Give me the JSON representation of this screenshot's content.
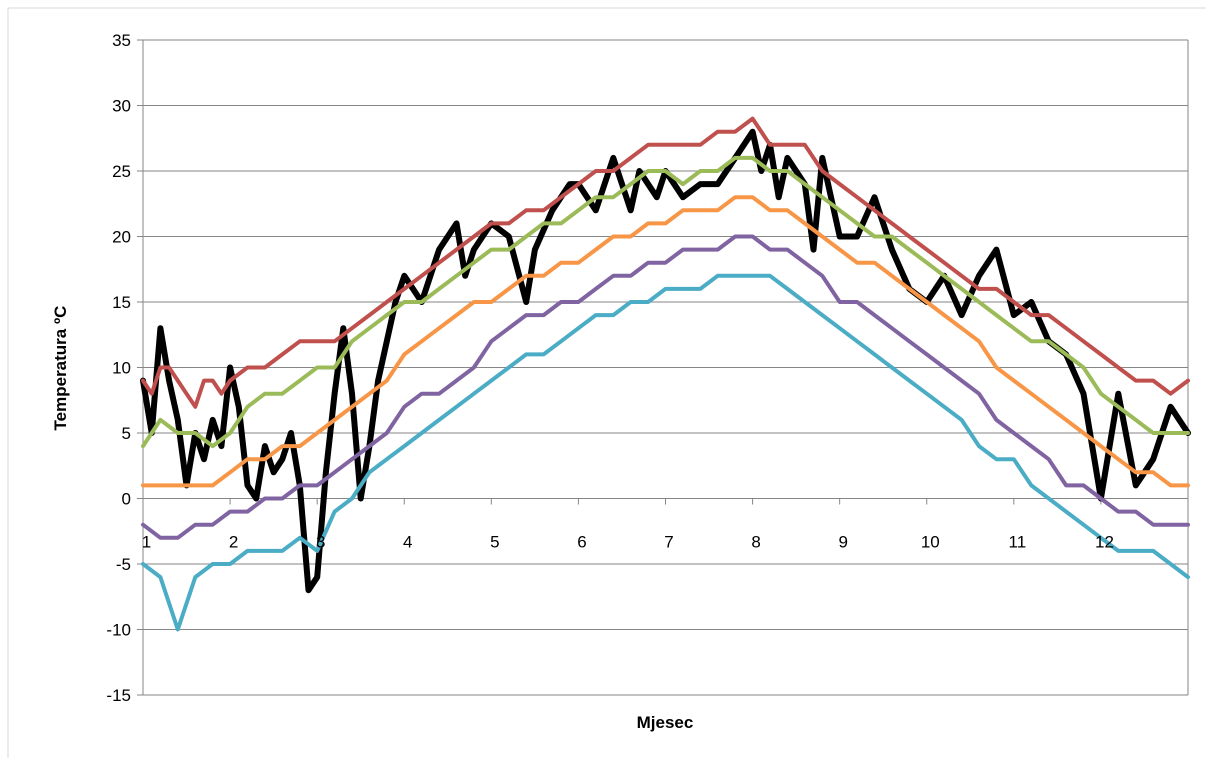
{
  "chart_data": {
    "type": "line",
    "title": "",
    "xlabel": "Mjesec",
    "ylabel": "Temperatura ºC",
    "ylim": [
      -15,
      35
    ],
    "xlim": [
      1,
      13
    ],
    "y_ticks": [
      "35",
      "30",
      "25",
      "20",
      "15",
      "10",
      "5",
      "0",
      "-5",
      "-10",
      "-15"
    ],
    "x_ticks": [
      "1",
      "2",
      "3",
      "4",
      "5",
      "6",
      "7",
      "8",
      "9",
      "10",
      "11",
      "12"
    ],
    "grid": "horizontal",
    "legend": "none",
    "series": [
      {
        "color": "#000000",
        "x": [
          1.0,
          1.1,
          1.2,
          1.3,
          1.4,
          1.5,
          1.6,
          1.7,
          1.8,
          1.9,
          2.0,
          2.1,
          2.2,
          2.3,
          2.4,
          2.5,
          2.6,
          2.7,
          2.8,
          2.9,
          3.0,
          3.1,
          3.2,
          3.3,
          3.4,
          3.5,
          3.6,
          3.7,
          3.8,
          3.9,
          4.0,
          4.2,
          4.4,
          4.6,
          4.7,
          4.8,
          5.0,
          5.2,
          5.4,
          5.5,
          5.7,
          5.9,
          6.0,
          6.2,
          6.4,
          6.6,
          6.7,
          6.9,
          7.0,
          7.2,
          7.4,
          7.6,
          7.8,
          8.0,
          8.1,
          8.2,
          8.3,
          8.4,
          8.6,
          8.7,
          8.8,
          9.0,
          9.2,
          9.4,
          9.6,
          9.8,
          10.0,
          10.2,
          10.4,
          10.6,
          10.8,
          11.0,
          11.2,
          11.4,
          11.6,
          11.8,
          11.9,
          12.0,
          12.2,
          12.4,
          12.6,
          12.8,
          13.0
        ],
        "y": [
          9,
          5,
          13,
          9,
          6,
          1,
          5,
          3,
          6,
          4,
          10,
          7,
          1,
          0,
          4,
          2,
          3,
          5,
          1,
          -7,
          -6,
          2,
          8,
          13,
          8,
          0,
          4,
          9,
          12,
          15,
          17,
          15,
          19,
          21,
          17,
          19,
          21,
          20,
          15,
          19,
          22,
          24,
          24,
          22,
          26,
          22,
          25,
          23,
          25,
          23,
          24,
          24,
          26,
          28,
          25,
          27,
          23,
          26,
          24,
          19,
          26,
          20,
          20,
          23,
          19,
          16,
          15,
          17,
          14,
          17,
          19,
          14,
          15,
          12,
          11,
          8,
          4,
          0,
          8,
          1,
          3,
          7,
          5
        ]
      },
      {
        "color": "#c0504d",
        "x": [
          1.0,
          1.1,
          1.2,
          1.3,
          1.4,
          1.5,
          1.6,
          1.7,
          1.8,
          1.9,
          2.0,
          2.2,
          2.4,
          2.6,
          2.8,
          3.0,
          3.2,
          3.4,
          3.6,
          3.8,
          4.0,
          4.2,
          4.4,
          4.6,
          4.8,
          5.0,
          5.2,
          5.4,
          5.6,
          5.8,
          6.0,
          6.2,
          6.4,
          6.6,
          6.8,
          7.0,
          7.2,
          7.4,
          7.6,
          7.8,
          8.0,
          8.2,
          8.4,
          8.6,
          8.8,
          9.0,
          9.2,
          9.4,
          9.6,
          9.8,
          10.0,
          10.2,
          10.4,
          10.6,
          10.8,
          11.0,
          11.2,
          11.4,
          11.6,
          11.8,
          12.0,
          12.2,
          12.4,
          12.6,
          12.8,
          13.0
        ],
        "y": [
          9,
          8,
          10,
          10,
          9,
          8,
          7,
          9,
          9,
          8,
          9,
          10,
          10,
          11,
          12,
          12,
          12,
          13,
          14,
          15,
          16,
          17,
          18,
          19,
          20,
          21,
          21,
          22,
          22,
          23,
          24,
          25,
          25,
          26,
          27,
          27,
          27,
          27,
          28,
          28,
          29,
          27,
          27,
          27,
          25,
          24,
          23,
          22,
          21,
          20,
          19,
          18,
          17,
          16,
          16,
          15,
          14,
          14,
          13,
          12,
          11,
          10,
          9,
          9,
          8,
          9
        ]
      },
      {
        "color": "#9bbb59",
        "x": [
          1.0,
          1.2,
          1.4,
          1.6,
          1.8,
          2.0,
          2.2,
          2.4,
          2.6,
          2.8,
          3.0,
          3.2,
          3.4,
          3.6,
          3.8,
          4.0,
          4.2,
          4.4,
          4.6,
          4.8,
          5.0,
          5.2,
          5.4,
          5.6,
          5.8,
          6.0,
          6.2,
          6.4,
          6.6,
          6.8,
          7.0,
          7.2,
          7.4,
          7.6,
          7.8,
          8.0,
          8.2,
          8.4,
          8.6,
          8.8,
          9.0,
          9.2,
          9.4,
          9.6,
          9.8,
          10.0,
          10.2,
          10.4,
          10.6,
          10.8,
          11.0,
          11.2,
          11.4,
          11.6,
          11.8,
          12.0,
          12.2,
          12.4,
          12.6,
          12.8,
          13.0
        ],
        "y": [
          4,
          6,
          5,
          5,
          4,
          5,
          7,
          8,
          8,
          9,
          10,
          10,
          12,
          13,
          14,
          15,
          15,
          16,
          17,
          18,
          19,
          19,
          20,
          21,
          21,
          22,
          23,
          23,
          24,
          25,
          25,
          24,
          25,
          25,
          26,
          26,
          25,
          25,
          24,
          23,
          22,
          21,
          20,
          20,
          19,
          18,
          17,
          16,
          15,
          14,
          13,
          12,
          12,
          11,
          10,
          8,
          7,
          6,
          5,
          5,
          5
        ]
      },
      {
        "color": "#f79646",
        "x": [
          1.0,
          1.2,
          1.4,
          1.6,
          1.8,
          2.0,
          2.2,
          2.4,
          2.6,
          2.8,
          3.0,
          3.2,
          3.4,
          3.6,
          3.8,
          4.0,
          4.2,
          4.4,
          4.6,
          4.8,
          5.0,
          5.2,
          5.4,
          5.6,
          5.8,
          6.0,
          6.2,
          6.4,
          6.6,
          6.8,
          7.0,
          7.2,
          7.4,
          7.6,
          7.8,
          8.0,
          8.2,
          8.4,
          8.6,
          8.8,
          9.0,
          9.2,
          9.4,
          9.6,
          9.8,
          10.0,
          10.2,
          10.4,
          10.6,
          10.8,
          11.0,
          11.2,
          11.4,
          11.6,
          11.8,
          12.0,
          12.2,
          12.4,
          12.6,
          12.8,
          13.0
        ],
        "y": [
          1,
          1,
          1,
          1,
          1,
          2,
          3,
          3,
          4,
          4,
          5,
          6,
          7,
          8,
          9,
          11,
          12,
          13,
          14,
          15,
          15,
          16,
          17,
          17,
          18,
          18,
          19,
          20,
          20,
          21,
          21,
          22,
          22,
          22,
          23,
          23,
          22,
          22,
          21,
          20,
          19,
          18,
          18,
          17,
          16,
          15,
          14,
          13,
          12,
          10,
          9,
          8,
          7,
          6,
          5,
          4,
          3,
          2,
          2,
          1,
          1
        ]
      },
      {
        "color": "#8064a2",
        "x": [
          1.0,
          1.2,
          1.4,
          1.6,
          1.8,
          2.0,
          2.2,
          2.4,
          2.6,
          2.8,
          3.0,
          3.2,
          3.4,
          3.6,
          3.8,
          4.0,
          4.2,
          4.4,
          4.6,
          4.8,
          5.0,
          5.2,
          5.4,
          5.6,
          5.8,
          6.0,
          6.2,
          6.4,
          6.6,
          6.8,
          7.0,
          7.2,
          7.4,
          7.6,
          7.8,
          8.0,
          8.2,
          8.4,
          8.6,
          8.8,
          9.0,
          9.2,
          9.4,
          9.6,
          9.8,
          10.0,
          10.2,
          10.4,
          10.6,
          10.8,
          11.0,
          11.2,
          11.4,
          11.6,
          11.8,
          12.0,
          12.2,
          12.4,
          12.6,
          12.8,
          13.0
        ],
        "y": [
          -2,
          -3,
          -3,
          -2,
          -2,
          -1,
          -1,
          0,
          0,
          1,
          1,
          2,
          3,
          4,
          5,
          7,
          8,
          8,
          9,
          10,
          12,
          13,
          14,
          14,
          15,
          15,
          16,
          17,
          17,
          18,
          18,
          19,
          19,
          19,
          20,
          20,
          19,
          19,
          18,
          17,
          15,
          15,
          14,
          13,
          12,
          11,
          10,
          9,
          8,
          6,
          5,
          4,
          3,
          1,
          1,
          0,
          -1,
          -1,
          -2,
          -2,
          -2
        ]
      },
      {
        "color": "#4bacc6",
        "x": [
          1.0,
          1.2,
          1.4,
          1.6,
          1.8,
          2.0,
          2.2,
          2.4,
          2.6,
          2.8,
          3.0,
          3.2,
          3.4,
          3.6,
          3.8,
          4.0,
          4.2,
          4.4,
          4.6,
          4.8,
          5.0,
          5.2,
          5.4,
          5.6,
          5.8,
          6.0,
          6.2,
          6.4,
          6.6,
          6.8,
          7.0,
          7.2,
          7.4,
          7.6,
          7.8,
          8.0,
          8.2,
          8.4,
          8.6,
          8.8,
          9.0,
          9.2,
          9.4,
          9.6,
          9.8,
          10.0,
          10.2,
          10.4,
          10.6,
          10.8,
          11.0,
          11.2,
          11.4,
          11.6,
          11.8,
          12.0,
          12.2,
          12.4,
          12.6,
          12.8,
          13.0
        ],
        "y": [
          -5,
          -6,
          -10,
          -6,
          -5,
          -5,
          -4,
          -4,
          -4,
          -3,
          -4,
          -1,
          0,
          2,
          3,
          4,
          5,
          6,
          7,
          8,
          9,
          10,
          11,
          11,
          12,
          13,
          14,
          14,
          15,
          15,
          16,
          16,
          16,
          17,
          17,
          17,
          17,
          16,
          15,
          14,
          13,
          12,
          11,
          10,
          9,
          8,
          7,
          6,
          4,
          3,
          3,
          1,
          0,
          -1,
          -2,
          -3,
          -4,
          -4,
          -4,
          -5,
          -6
        ]
      }
    ]
  }
}
